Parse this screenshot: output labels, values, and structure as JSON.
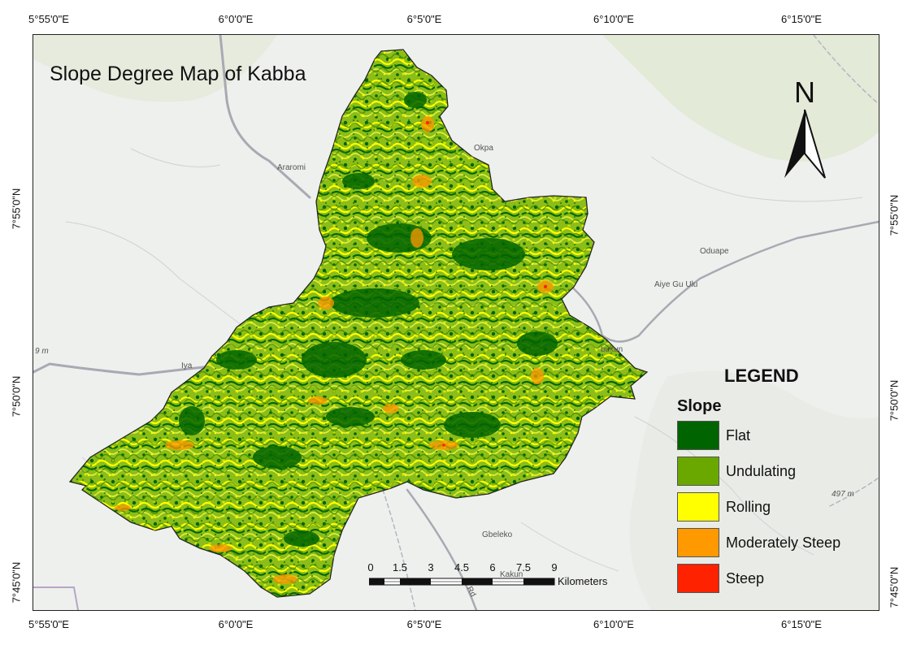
{
  "map": {
    "title": "Slope Degree Map of Kabba",
    "graticule": {
      "top": [
        "5°55'0\"E",
        "6°0'0\"E",
        "6°5'0\"E",
        "6°10'0\"E",
        "6°15'0\"E"
      ],
      "bottom": [
        "5°55'0\"E",
        "6°0'0\"E",
        "6°5'0\"E",
        "6°10'0\"E",
        "6°15'0\"E"
      ],
      "left": [
        "7°55'0\"N",
        "7°50'0\"N",
        "7°45'0\"N"
      ],
      "right": [
        "7°55'0\"N",
        "7°50'0\"N",
        "7°45'0\"N"
      ]
    },
    "places": {
      "araromi": "Araromi",
      "okpa": "Okpa",
      "oduape": "Oduape",
      "aiye_gu_ulu": "Aiye Gu Ulu",
      "iya": "Iya",
      "bukun": "bukun",
      "gbeleko": "Gbeleko",
      "kakun": "Kakun",
      "elev_497": "497 m",
      "elev_9m": "9 m",
      "road_rd": "Rd"
    },
    "north_arrow": "N",
    "legend": {
      "title": "LEGEND",
      "subtitle": "Slope",
      "items": [
        {
          "label": "Flat",
          "color": "#006400"
        },
        {
          "label": "Undulating",
          "color": "#6aa800"
        },
        {
          "label": "Rolling",
          "color": "#ffff00"
        },
        {
          "label": "Moderately Steep",
          "color": "#ff9900"
        },
        {
          "label": "Steep",
          "color": "#ff2200"
        }
      ]
    },
    "scale_bar": {
      "labels": [
        "0",
        "1.5",
        "3",
        "4.5",
        "6",
        "7.5",
        "9"
      ],
      "units": "Kilometers"
    },
    "colors": {
      "flat": "#006400",
      "undulating": "#6aa800",
      "rolling": "#ffff00",
      "moderately_steep": "#ff9900",
      "steep": "#ff2200",
      "basemap": "#eef0ed",
      "road": "#a9a9b3"
    }
  }
}
